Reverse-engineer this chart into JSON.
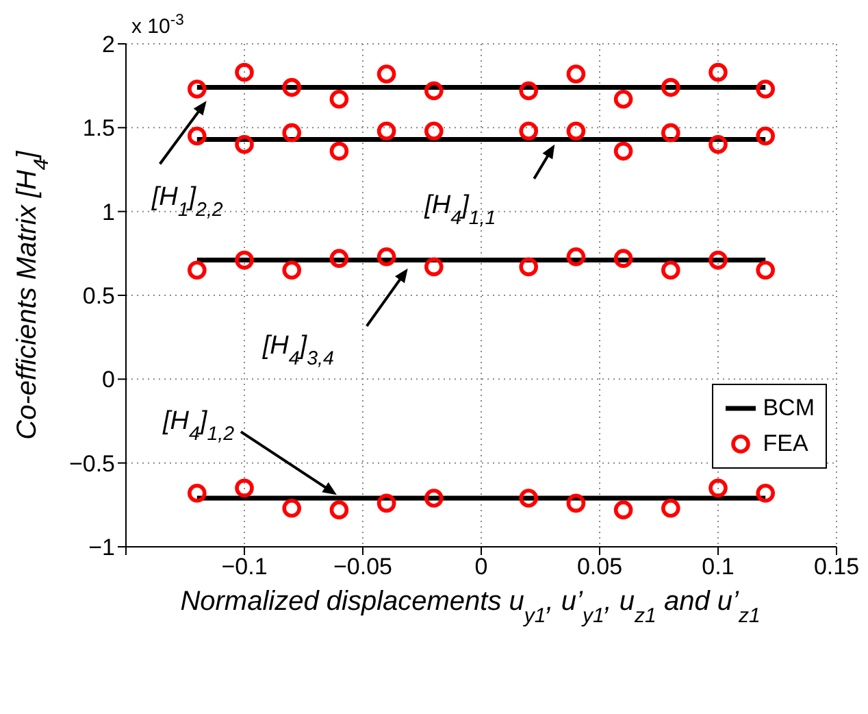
{
  "chart_data": {
    "type": "line",
    "xlabel": "Normalized displacements u$_{y1}$, u’$_{y1}$, u$_{z1}$ and u’$_{z1}$",
    "ylabel": "Co-efficients Matrix [H$_{4}$]",
    "xlim": [
      -0.15,
      0.15
    ],
    "xticks": [
      {
        "value": -0.15,
        "label": null
      },
      -0.1,
      -0.05,
      0,
      0.05,
      0.1,
      0.15
    ],
    "ylim": [
      -1,
      2
    ],
    "yticks": [
      -1,
      -0.5,
      0,
      0.5,
      1,
      1.5,
      2
    ],
    "grid": true,
    "legend": "right",
    "annotations": [
      "x 10$^{-3}$",
      {
        "text": "[H$_{1}$]$_{2,2}$",
        "x": -0.116,
        "y": 1.66
      },
      {
        "text": "[H$_{4}$]$_{1,1}$",
        "x": 0.031,
        "y": 1.4
      },
      {
        "text": "[H$_{4}$]$_{3,4}$",
        "x": -0.031,
        "y": 0.66
      },
      {
        "text": "[H$_{4}$]$_{1,2}$",
        "x": -0.061,
        "y": -0.69
      }
    ],
    "series": [
      {
        "name": "BCM",
        "color": "#000000",
        "marker": "none",
        "line_style": "solid",
        "x": [
          -0.12,
          0.12
        ],
        "values": [
          1.74,
          1.74
        ]
      },
      {
        "color": "#000000",
        "marker": "none",
        "line_style": "solid",
        "x": [
          -0.12,
          0.12
        ],
        "values": [
          1.43,
          1.43
        ]
      },
      {
        "color": "#000000",
        "marker": "none",
        "line_style": "solid",
        "x": [
          -0.12,
          0.12
        ],
        "values": [
          0.71,
          0.71
        ]
      },
      {
        "color": "#000000",
        "marker": "none",
        "line_style": "solid",
        "x": [
          -0.12,
          0.12
        ],
        "values": [
          -0.71,
          -0.71
        ]
      },
      {
        "name": "FEA",
        "type": "scatter",
        "color": "#ff0000",
        "marker": "circle",
        "x": [
          -0.12,
          -0.1,
          -0.08,
          -0.06,
          -0.04,
          -0.02,
          0.02,
          0.04,
          0.06,
          0.08,
          0.1,
          0.12,
          -0.12,
          -0.1,
          -0.08,
          -0.06,
          -0.04,
          -0.02,
          0.02,
          0.04,
          0.06,
          0.08,
          0.1,
          0.12,
          -0.12,
          -0.1,
          -0.08,
          -0.06,
          -0.04,
          -0.02,
          0.02,
          0.04,
          0.06,
          0.08,
          0.1,
          0.12,
          -0.12,
          -0.1,
          -0.08,
          -0.06,
          -0.04,
          -0.02,
          0.02,
          0.04,
          0.06,
          0.08,
          0.1,
          0.12
        ],
        "values": [
          1.73,
          1.83,
          1.74,
          1.67,
          1.82,
          1.72,
          1.72,
          1.82,
          1.67,
          1.74,
          1.83,
          1.73,
          1.45,
          1.4,
          1.47,
          1.36,
          1.48,
          1.48,
          1.48,
          1.48,
          1.36,
          1.47,
          1.4,
          1.45,
          0.65,
          0.71,
          0.65,
          0.72,
          0.73,
          0.67,
          0.67,
          0.73,
          0.72,
          0.65,
          0.71,
          0.65,
          -0.68,
          -0.65,
          -0.77,
          -0.78,
          -0.74,
          -0.71,
          -0.71,
          -0.74,
          -0.78,
          -0.77,
          -0.65,
          -0.68
        ]
      }
    ]
  }
}
